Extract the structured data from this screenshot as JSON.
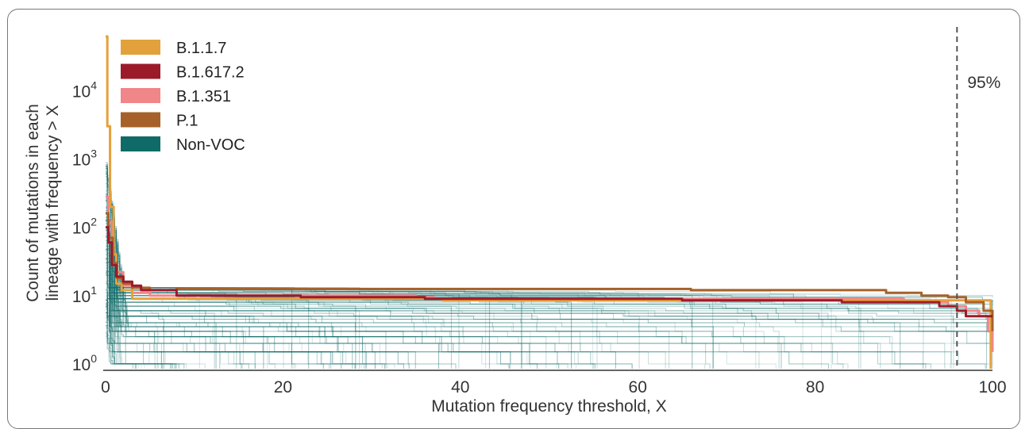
{
  "chart_data": {
    "type": "line",
    "title": "",
    "xlabel": "Mutation frequency threshold, X",
    "ylabel": [
      "Count of mutations in each",
      "lineage with frequency > X"
    ],
    "xlim": [
      0,
      100
    ],
    "ylim": [
      0.85,
      62000
    ],
    "y_scale": "log",
    "x_ticks": [
      0,
      20,
      40,
      60,
      80,
      100
    ],
    "y_ticks": [
      {
        "value": 1,
        "base": "10",
        "exp": "0"
      },
      {
        "value": 10,
        "base": "10",
        "exp": "1"
      },
      {
        "value": 100,
        "base": "10",
        "exp": "2"
      },
      {
        "value": 1000,
        "base": "10",
        "exp": "3"
      },
      {
        "value": 10000,
        "base": "10",
        "exp": "4"
      }
    ],
    "grid": false,
    "legend_position": "top-left",
    "reference_line": {
      "x": 96,
      "label": "95%",
      "style": "dashed",
      "color": "#555555"
    },
    "series": [
      {
        "name": "B.1.1.7",
        "color": "#E3A13B",
        "points": [
          [
            0,
            62000
          ],
          [
            0.2,
            3000
          ],
          [
            0.5,
            200
          ],
          [
            0.9,
            40
          ],
          [
            1.2,
            15
          ],
          [
            1.8,
            12
          ],
          [
            3,
            9
          ],
          [
            5,
            9
          ],
          [
            10,
            9
          ],
          [
            30,
            9
          ],
          [
            38,
            8.5
          ],
          [
            60,
            8.5
          ],
          [
            96,
            8.5
          ],
          [
            99.6,
            8.5
          ],
          [
            99.8,
            0.85
          ]
        ]
      },
      {
        "name": "B.1.617.2",
        "color": "#9B1B2A",
        "points": [
          [
            0,
            100
          ],
          [
            0.3,
            60
          ],
          [
            0.7,
            28
          ],
          [
            1.2,
            19
          ],
          [
            2,
            16
          ],
          [
            3,
            14
          ],
          [
            4,
            12
          ],
          [
            8,
            10
          ],
          [
            21,
            10
          ],
          [
            22,
            9.5
          ],
          [
            35,
            9.5
          ],
          [
            36,
            9
          ],
          [
            64,
            9
          ],
          [
            65,
            8.5
          ],
          [
            82,
            8.5
          ],
          [
            83,
            8
          ],
          [
            91,
            8
          ],
          [
            94,
            7
          ],
          [
            96,
            6
          ],
          [
            97,
            5
          ],
          [
            100,
            5
          ]
        ]
      },
      {
        "name": "B.1.351",
        "color": "#F0858A",
        "points": [
          [
            0,
            280
          ],
          [
            0.3,
            120
          ],
          [
            0.7,
            40
          ],
          [
            1.2,
            22
          ],
          [
            2,
            14
          ],
          [
            3,
            11
          ],
          [
            5,
            10
          ],
          [
            30,
            10
          ],
          [
            35,
            9.5
          ],
          [
            37,
            9
          ],
          [
            80,
            9
          ],
          [
            90,
            8
          ],
          [
            95,
            7
          ],
          [
            97,
            6
          ],
          [
            98.5,
            5
          ],
          [
            99.5,
            3
          ],
          [
            100,
            1.5
          ]
        ]
      },
      {
        "name": "P.1",
        "color": "#A6612A",
        "points": [
          [
            0,
            160
          ],
          [
            0.3,
            70
          ],
          [
            0.8,
            30
          ],
          [
            1.3,
            18
          ],
          [
            2,
            15
          ],
          [
            3,
            13
          ],
          [
            5,
            12
          ],
          [
            8,
            12.5
          ],
          [
            40,
            12.5
          ],
          [
            65,
            12.5
          ],
          [
            66,
            12
          ],
          [
            87,
            12
          ],
          [
            88,
            11
          ],
          [
            92,
            10
          ],
          [
            95,
            9.5
          ],
          [
            97,
            8
          ],
          [
            99,
            6
          ],
          [
            100,
            3
          ]
        ]
      },
      {
        "name": "Non-VOC",
        "color": "#0E6B68",
        "points": []
      }
    ]
  }
}
